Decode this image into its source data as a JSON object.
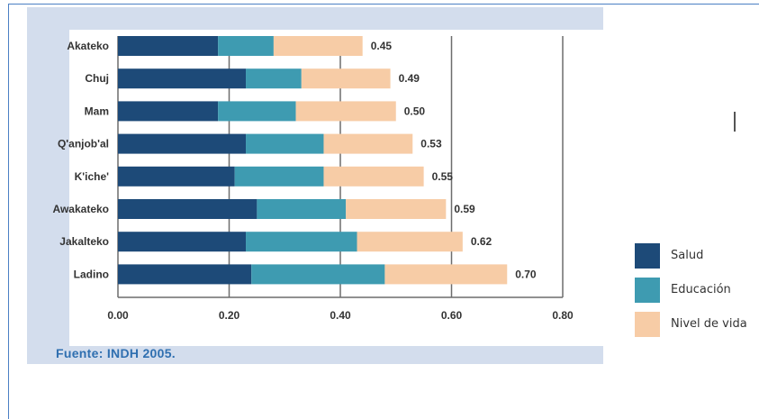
{
  "chart_data": {
    "type": "bar",
    "orientation": "horizontal",
    "stacked": true,
    "categories": [
      "Akateko",
      "Chuj",
      "Mam",
      "Q'anjob'al",
      "K'iche'",
      "Awakateko",
      "Jakalteko",
      "Ladino"
    ],
    "series": [
      {
        "name": "Salud",
        "color": "#1d4a78",
        "values": [
          0.18,
          0.23,
          0.18,
          0.23,
          0.21,
          0.25,
          0.23,
          0.24
        ]
      },
      {
        "name": "Educación",
        "color": "#3e9bb1",
        "values": [
          0.1,
          0.1,
          0.14,
          0.14,
          0.16,
          0.16,
          0.2,
          0.24
        ]
      },
      {
        "name": "Nivel de vida",
        "color": "#f7cca6",
        "values": [
          0.16,
          0.16,
          0.18,
          0.16,
          0.18,
          0.18,
          0.19,
          0.22
        ]
      }
    ],
    "totals": [
      "0.45",
      "0.49",
      "0.50",
      "0.53",
      "0.55",
      "0.59",
      "0.62",
      "0.70"
    ],
    "x_ticks": [
      "0.00",
      "0.20",
      "0.40",
      "0.60",
      "0.80"
    ],
    "xlim": [
      0,
      0.8
    ],
    "grid": true,
    "legend_position": "right",
    "source": "Fuente: INDH 2005."
  }
}
